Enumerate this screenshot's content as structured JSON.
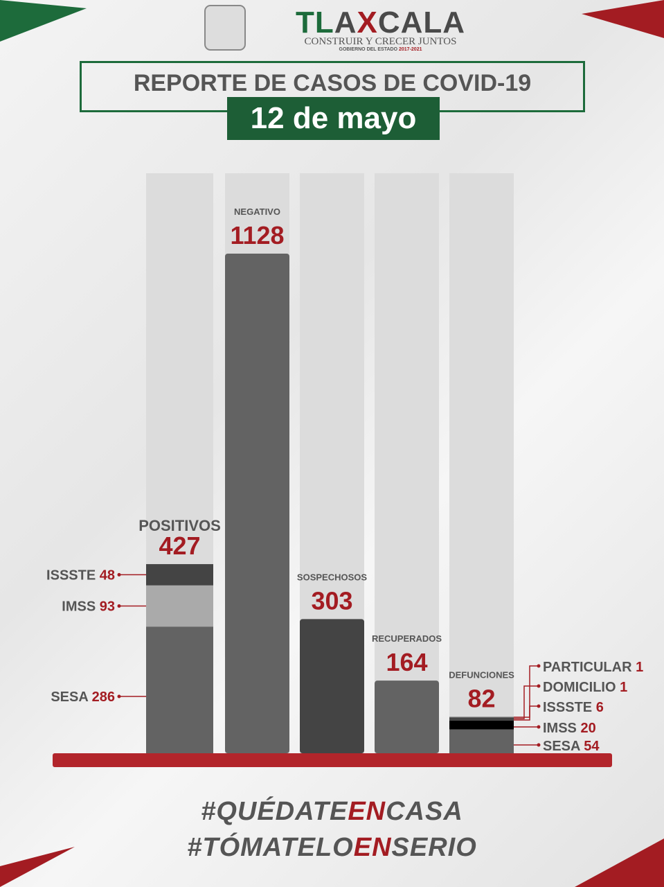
{
  "header": {
    "brand_parts": [
      "TL",
      "A",
      "X",
      "CALA"
    ],
    "slogan": "CONSTRUIR Y CRECER JUNTOS",
    "government": "GOBIERNO DEL ESTADO",
    "period": "2017-2021",
    "title": "REPORTE DE CASOS DE COVID-19",
    "date": "12 de mayo"
  },
  "colors": {
    "green": "#1d6b3b",
    "red": "#a31c22",
    "bar_bg": "#dcdcdc",
    "bar": "#636363",
    "dark": "#444444",
    "light": "#aaaaaa",
    "black": "#000000",
    "baseline": "#b2252b"
  },
  "chart_data": {
    "type": "bar",
    "categories": [
      "POSITIVOS",
      "NEGATIVO",
      "SOSPECHOSOS",
      "RECUPERADOS",
      "DEFUNCIONES"
    ],
    "values": [
      427,
      1128,
      303,
      164,
      82
    ],
    "breakdowns": {
      "POSITIVOS": [
        {
          "name": "SESA",
          "value": 286,
          "color": "#636363"
        },
        {
          "name": "IMSS",
          "value": 93,
          "color": "#aaaaaa"
        },
        {
          "name": "ISSSTE",
          "value": 48,
          "color": "#444444"
        }
      ],
      "DEFUNCIONES": [
        {
          "name": "SESA",
          "value": 54,
          "color": "#636363"
        },
        {
          "name": "IMSS",
          "value": 20,
          "color": "#000000"
        },
        {
          "name": "ISSSTE",
          "value": 6,
          "color": "#444444"
        },
        {
          "name": "DOMICILIO",
          "value": 1,
          "color": "#444444"
        },
        {
          "name": "PARTICULAR",
          "value": 1,
          "color": "#444444"
        }
      ]
    },
    "bar_colors": [
      "#636363",
      "#636363",
      "#444444",
      "#636363",
      "#636363"
    ],
    "ylim": [
      0,
      1128
    ]
  },
  "footer": {
    "hashtags": [
      [
        "#QUÉDATE",
        "EN",
        "CASA"
      ],
      [
        "#TÓMATELO",
        "EN",
        "SERIO"
      ]
    ]
  }
}
